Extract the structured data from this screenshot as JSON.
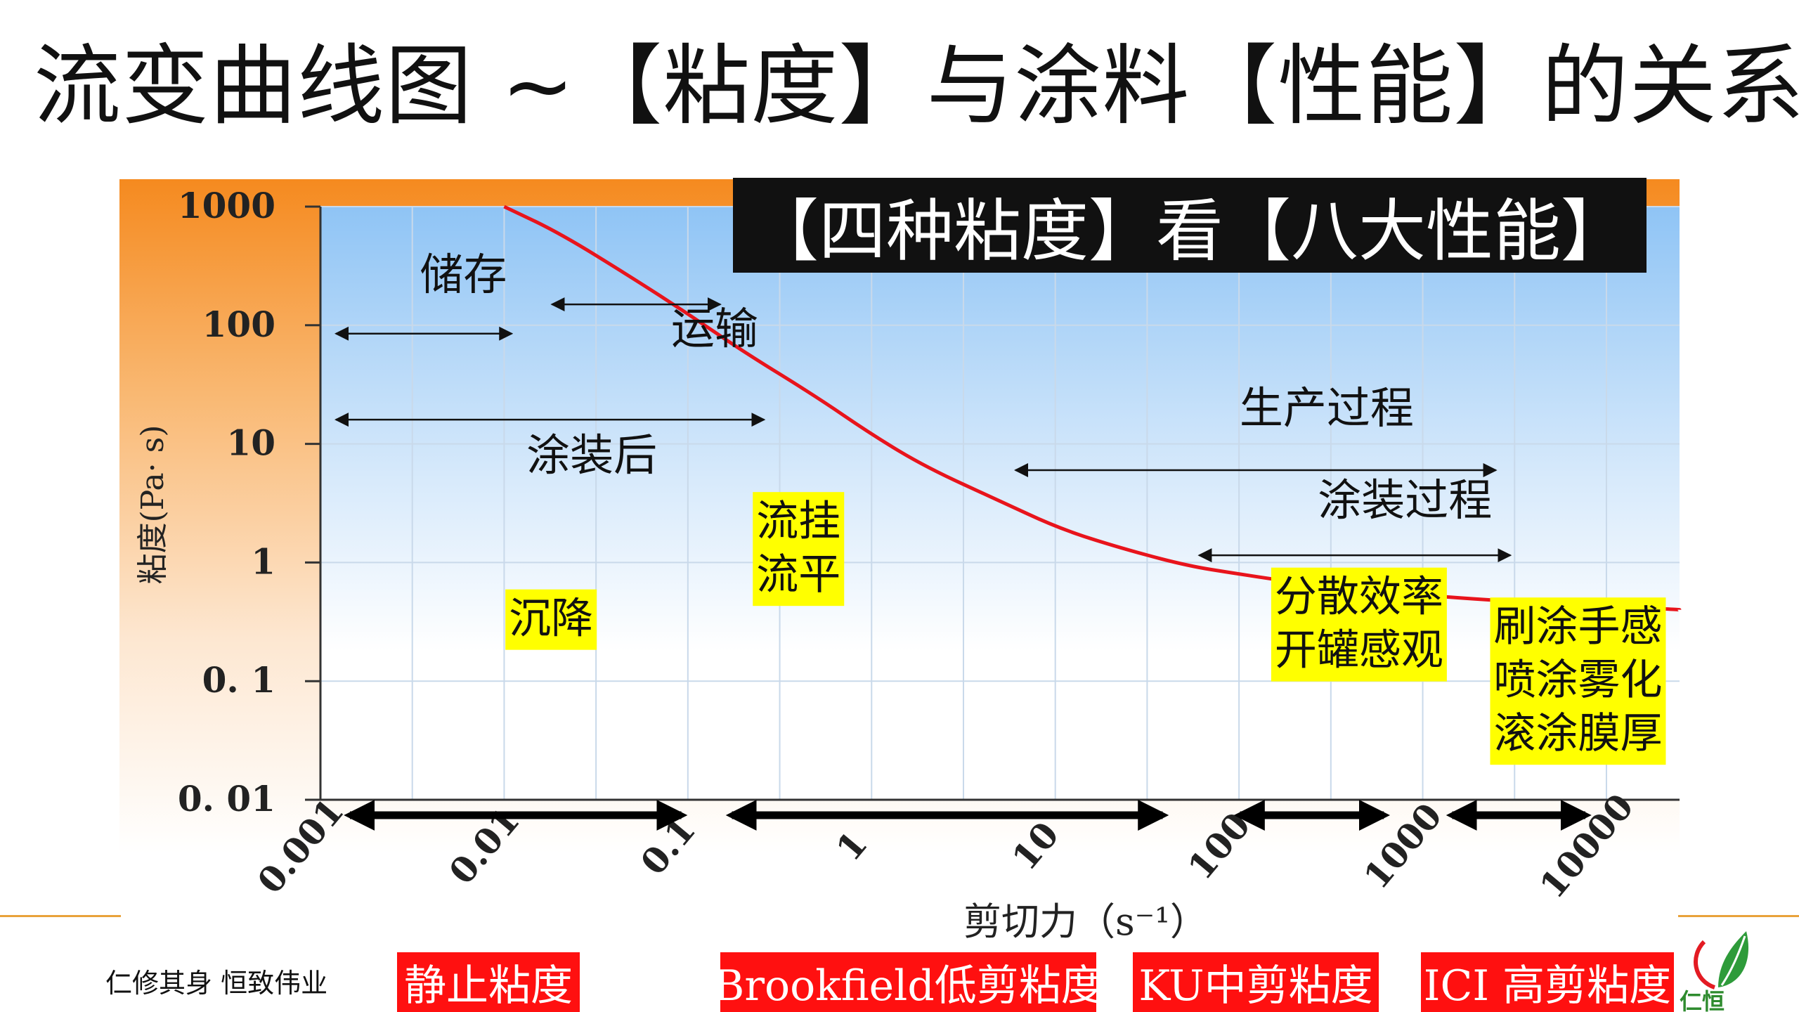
{
  "page": {
    "title": "流变曲线图 ~【粘度】与涂料【性能】的关系",
    "banner": "【四种粘度】看【八大性能】",
    "motto": "仁修其身  恒致伟业",
    "logo_text": "仁恒"
  },
  "viscosity_labels": {
    "static": "静止粘度",
    "brookfield": "Brookfield低剪粘度",
    "ku": "KU中剪粘度",
    "ici": "ICI 高剪粘度"
  },
  "colors": {
    "curve": "#e8141c",
    "highlight": "#ffff00",
    "label_red": "#ff1010",
    "banner_bg": "#111111",
    "plot_top": "#9ccaf6"
  },
  "chart_data": {
    "type": "line",
    "xlabel": "剪切力（s⁻¹）",
    "ylabel": "粘度(Pa· s)",
    "x_scale": "log",
    "y_scale": "log",
    "xlim": [
      0.001,
      25000
    ],
    "ylim": [
      0.01,
      1000
    ],
    "x_ticks": [
      0.001,
      0.01,
      0.1,
      1,
      10,
      100,
      1000,
      10000
    ],
    "x_tick_labels": [
      "0.001",
      "0.01",
      "0.1",
      "1",
      "10",
      "100",
      "1000",
      "10000"
    ],
    "y_ticks": [
      1000,
      100,
      10,
      1,
      0.1,
      0.01
    ],
    "y_tick_labels": [
      "1000",
      "100",
      "10",
      "1",
      "0. 1",
      "0. 01"
    ],
    "grid": true,
    "series": [
      {
        "x": [
          0.01,
          0.02,
          0.05,
          0.1,
          0.2,
          0.5,
          1,
          2,
          5,
          10,
          20,
          50,
          100,
          200,
          500,
          1000,
          2000,
          5000,
          10000,
          25000
        ],
        "y": [
          1000,
          600,
          250,
          125,
          60,
          25,
          12,
          6.3,
          3.3,
          2.0,
          1.4,
          0.95,
          0.8,
          0.68,
          0.58,
          0.53,
          0.49,
          0.45,
          0.43,
          0.4
        ]
      }
    ],
    "range_annotations": [
      {
        "label": "储存",
        "x_from": 0.001,
        "x_to": 0.011,
        "y_at": 85,
        "label_x": 0.006,
        "label_y": 200
      },
      {
        "label": "运输",
        "x_from": 0.015,
        "x_to": 0.15,
        "y_at": 150,
        "label_x": 0.14,
        "label_y": 70
      },
      {
        "label": "涂装后",
        "x_from": 0.001,
        "x_to": 0.26,
        "y_at": 16,
        "label_x": 0.03,
        "label_y": 6
      },
      {
        "label": "生产过程",
        "x_from": 5,
        "x_to": 2500,
        "y_at": 6,
        "label_x": 300,
        "label_y": 15
      },
      {
        "label": "涂装过程",
        "x_from": 50,
        "x_to": 3000,
        "y_at": 1.15,
        "label_x": 800,
        "label_y": 2.5
      }
    ],
    "property_labels": [
      {
        "lines": [
          "沉降"
        ],
        "x": 0.018,
        "y": 0.33
      },
      {
        "lines": [
          "流挂",
          "流平"
        ],
        "x": 0.4,
        "y": 1.3
      },
      {
        "lines": [
          "分散效率",
          "开罐感观"
        ],
        "x": 450,
        "y": 0.3
      },
      {
        "lines": [
          "刷涂手感",
          "喷涂雾化",
          "滚涂膜厚"
        ],
        "x": 7000,
        "y": 0.1
      }
    ],
    "segment_arrows": [
      {
        "name": "static",
        "x_from": 0.001,
        "x_to": 0.12
      },
      {
        "name": "brookfield",
        "x_from": 0.12,
        "x_to": 50
      },
      {
        "name": "ku",
        "x_from": 70,
        "x_to": 800
      },
      {
        "name": "ici",
        "x_from": 1000,
        "x_to": 10000
      }
    ]
  }
}
